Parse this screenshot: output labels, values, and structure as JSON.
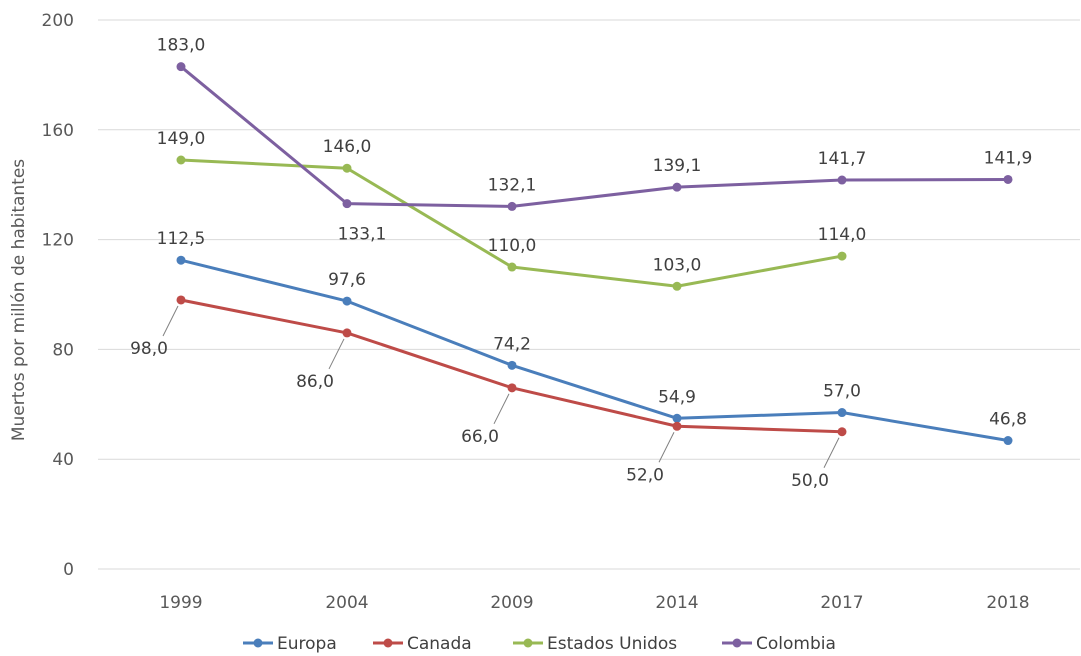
{
  "chart_data": {
    "type": "line",
    "ylabel": "Muertos por millón de habitantes",
    "ylim": [
      0,
      200
    ],
    "yticks": [
      "0",
      "40",
      "80",
      "120",
      "160",
      "200"
    ],
    "categories": [
      "1999",
      "2004",
      "2009",
      "2014",
      "2017",
      "2018"
    ],
    "grid": true,
    "legend_position": "bottom",
    "series": [
      {
        "name": "Europa",
        "color": "#4a7ebb",
        "values": [
          112.5,
          97.6,
          74.2,
          54.9,
          57.0,
          46.8
        ],
        "labels": [
          "112,5",
          "97,6",
          "74,2",
          "54,9",
          "57,0",
          "46,8"
        ]
      },
      {
        "name": "Canada",
        "color": "#be4b48",
        "values": [
          98.0,
          86.0,
          66.0,
          52.0,
          50.0,
          null
        ],
        "labels": [
          "98,0",
          "86,0",
          "66,0",
          "52,0",
          "50,0",
          null
        ]
      },
      {
        "name": "Estados Unidos",
        "color": "#98b954",
        "values": [
          149.0,
          146.0,
          110.0,
          103.0,
          114.0,
          null
        ],
        "labels": [
          "149,0",
          "146,0",
          "110,0",
          "103,0",
          "114,0",
          null
        ]
      },
      {
        "name": "Colombia",
        "color": "#7d60a0",
        "values": [
          183.0,
          133.1,
          132.1,
          139.1,
          141.7,
          141.9
        ],
        "labels": [
          "183,0",
          "133,1",
          "132,1",
          "139,1",
          "141,7",
          "141,9"
        ]
      }
    ]
  }
}
